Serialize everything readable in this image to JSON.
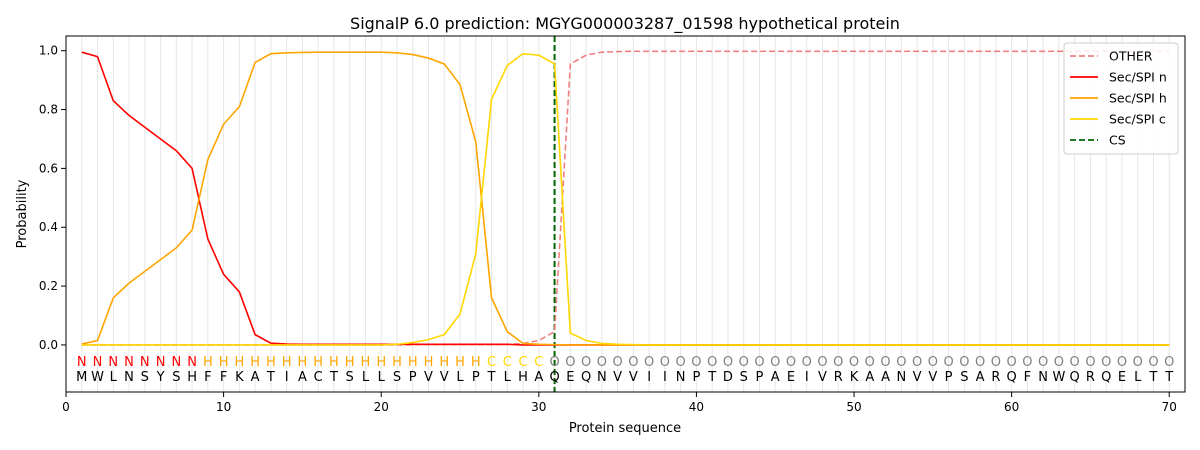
{
  "chart_data": {
    "type": "line",
    "title": "SignalP 6.0 prediction: MGYG000003287_01598 hypothetical protein",
    "xlabel": "Protein sequence",
    "ylabel": "Probability",
    "xlim": [
      0,
      71
    ],
    "ylim": [
      -0.16,
      1.05
    ],
    "xticks": [
      0,
      10,
      20,
      30,
      40,
      50,
      60,
      70
    ],
    "yticks": [
      0.0,
      0.2,
      0.4,
      0.6,
      0.8,
      1.0
    ],
    "grid": "vertical lines at every residue",
    "legend_position": "top-right",
    "sequence": [
      "M",
      "W",
      "L",
      "N",
      "S",
      "Y",
      "S",
      "H",
      "F",
      "F",
      "K",
      "A",
      "T",
      "I",
      "A",
      "C",
      "T",
      "S",
      "L",
      "L",
      "S",
      "P",
      "V",
      "V",
      "L",
      "P",
      "T",
      "L",
      "H",
      "A",
      "Q",
      "E",
      "Q",
      "N",
      "V",
      "V",
      "I",
      "I",
      "N",
      "P",
      "T",
      "D",
      "S",
      "P",
      "A",
      "E",
      "I",
      "V",
      "R",
      "K",
      "A",
      "A",
      "N",
      "V",
      "V",
      "P",
      "S",
      "A",
      "R",
      "Q",
      "F",
      "N",
      "W",
      "Q",
      "R",
      "Q",
      "E",
      "L",
      "T",
      "T"
    ],
    "annotation": [
      "N",
      "N",
      "N",
      "N",
      "N",
      "N",
      "N",
      "N",
      "H",
      "H",
      "H",
      "H",
      "H",
      "H",
      "H",
      "H",
      "H",
      "H",
      "H",
      "H",
      "H",
      "H",
      "H",
      "H",
      "H",
      "H",
      "C",
      "C",
      "C",
      "C",
      "O",
      "O",
      "O",
      "O",
      "O",
      "O",
      "O",
      "O",
      "O",
      "O",
      "O",
      "O",
      "O",
      "O",
      "O",
      "O",
      "O",
      "O",
      "O",
      "O",
      "O",
      "O",
      "O",
      "O",
      "O",
      "O",
      "O",
      "O",
      "O",
      "O",
      "O",
      "O",
      "O",
      "O",
      "O",
      "O",
      "O",
      "O",
      "O",
      "O"
    ],
    "annotation_colors": {
      "N": "#ff0000",
      "H": "#ffa500",
      "C": "#ffd700",
      "O": "#808080"
    },
    "cleavage_site": 31,
    "series": [
      {
        "name": "OTHER",
        "color": "#f08080",
        "dashed": true,
        "values": [
          0,
          0,
          0,
          0,
          0,
          0,
          0,
          0,
          0,
          0,
          0,
          0,
          0,
          0,
          0,
          0,
          0,
          0,
          0,
          0,
          0,
          0.001,
          0.001,
          0.001,
          0.001,
          0.001,
          0.001,
          0.002,
          0.005,
          0.015,
          0.045,
          0.955,
          0.985,
          0.995,
          0.997,
          0.998,
          0.998,
          0.998,
          0.998,
          0.998,
          0.998,
          0.998,
          0.998,
          0.998,
          0.998,
          0.998,
          0.998,
          0.998,
          0.998,
          0.998,
          0.998,
          0.998,
          0.998,
          0.998,
          0.998,
          0.998,
          0.998,
          0.998,
          0.998,
          0.998,
          0.998,
          0.998,
          0.998,
          0.998,
          0.998,
          0.998,
          0.998,
          0.998,
          0.998,
          0.998
        ]
      },
      {
        "name": "Sec/SPI n",
        "color": "#ff0000",
        "dashed": false,
        "values": [
          0.995,
          0.98,
          0.83,
          0.78,
          0.74,
          0.7,
          0.66,
          0.6,
          0.36,
          0.24,
          0.18,
          0.035,
          0.006,
          0.003,
          0.002,
          0.002,
          0.002,
          0.002,
          0.002,
          0.002,
          0.002,
          0.002,
          0.002,
          0.002,
          0.002,
          0.002,
          0.002,
          0.002,
          0,
          0,
          0,
          0,
          0,
          0,
          0,
          0,
          0,
          0,
          0,
          0,
          0,
          0,
          0,
          0,
          0,
          0,
          0,
          0,
          0,
          0,
          0,
          0,
          0,
          0,
          0,
          0,
          0,
          0,
          0,
          0,
          0,
          0,
          0,
          0,
          0,
          0,
          0,
          0,
          0,
          0
        ]
      },
      {
        "name": "Sec/SPI h",
        "color": "#ffa500",
        "dashed": false,
        "values": [
          0.003,
          0.015,
          0.16,
          0.21,
          0.25,
          0.29,
          0.33,
          0.39,
          0.63,
          0.75,
          0.81,
          0.96,
          0.99,
          0.993,
          0.994,
          0.995,
          0.995,
          0.995,
          0.995,
          0.995,
          0.993,
          0.987,
          0.975,
          0.955,
          0.885,
          0.69,
          0.16,
          0.045,
          0.005,
          0.002,
          0.001,
          0,
          0,
          0,
          0,
          0,
          0,
          0,
          0,
          0,
          0,
          0,
          0,
          0,
          0,
          0,
          0,
          0,
          0,
          0,
          0,
          0,
          0,
          0,
          0,
          0,
          0,
          0,
          0,
          0,
          0,
          0,
          0,
          0,
          0,
          0,
          0,
          0,
          0,
          0
        ]
      },
      {
        "name": "Sec/SPI c",
        "color": "#ffd700",
        "dashed": false,
        "values": [
          0,
          0,
          0,
          0,
          0,
          0,
          0,
          0,
          0,
          0,
          0,
          0,
          0,
          0,
          0,
          0,
          0,
          0,
          0,
          0,
          0.002,
          0.008,
          0.018,
          0.035,
          0.105,
          0.31,
          0.835,
          0.95,
          0.99,
          0.985,
          0.955,
          0.04,
          0.015,
          0.005,
          0.002,
          0.001,
          0,
          0,
          0,
          0,
          0,
          0,
          0,
          0,
          0,
          0,
          0,
          0,
          0,
          0,
          0,
          0,
          0,
          0,
          0,
          0,
          0,
          0,
          0,
          0,
          0,
          0,
          0,
          0,
          0,
          0,
          0,
          0,
          0,
          0
        ]
      }
    ],
    "cs_legend": {
      "name": "CS",
      "color": "#006400",
      "dashed": true
    }
  }
}
